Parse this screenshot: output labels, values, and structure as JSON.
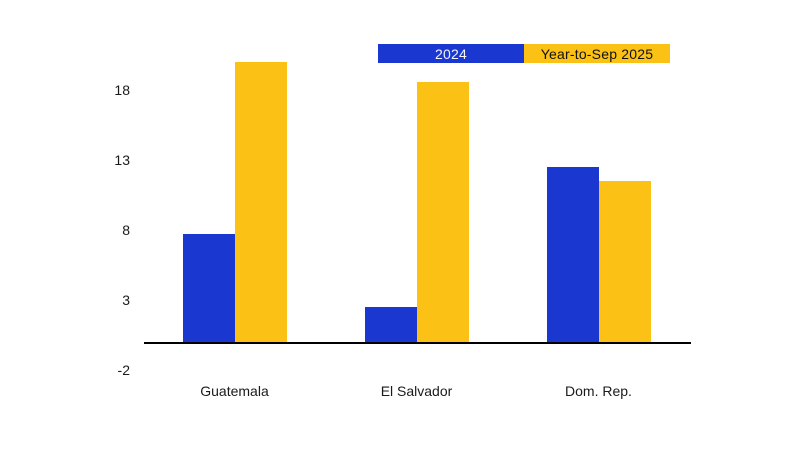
{
  "chart_data": {
    "type": "bar",
    "categories": [
      "Guatemala",
      "El Salvador",
      "Dom. Rep."
    ],
    "series": [
      {
        "name": "2024",
        "color": "#1a38d0",
        "label_text_color": "#f5f5f5",
        "values": [
          7.7,
          2.5,
          12.5
        ]
      },
      {
        "name": "Year-to-Sep 2025",
        "color": "#fcc115",
        "label_text_color": "#111111",
        "values": [
          20.0,
          18.6,
          11.5
        ]
      }
    ],
    "y_ticks": [
      18,
      13,
      8,
      3,
      -2
    ],
    "ylim": [
      -2,
      21
    ],
    "grid": false,
    "legend_position": "top-inside",
    "axis_line_color": "#000000",
    "tick_label_color": "#1a1a1a"
  }
}
